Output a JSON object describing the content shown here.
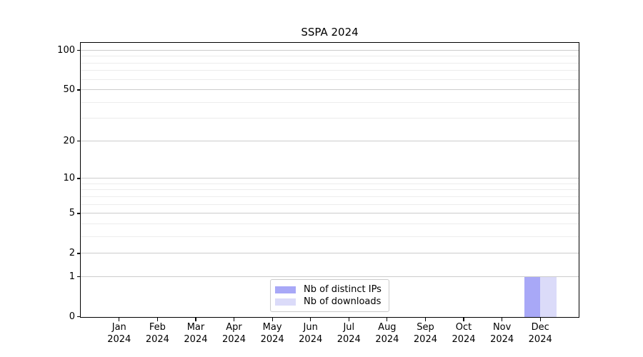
{
  "chart_data": {
    "type": "bar",
    "title": "SSPA 2024",
    "categories": [
      "Jan 2024",
      "Feb 2024",
      "Mar 2024",
      "Apr 2024",
      "May 2024",
      "Jun 2024",
      "Jul 2024",
      "Aug 2024",
      "Sep 2024",
      "Oct 2024",
      "Nov 2024",
      "Dec 2024"
    ],
    "series": [
      {
        "name": "Nb of distinct IPs",
        "color": "#a8a8f7",
        "values": [
          0,
          0,
          0,
          0,
          0,
          0,
          0,
          0,
          0,
          0,
          0,
          1
        ]
      },
      {
        "name": "Nb of downloads",
        "color": "#dbdbf9",
        "values": [
          0,
          0,
          0,
          0,
          0,
          0,
          0,
          0,
          0,
          0,
          0,
          1
        ]
      }
    ],
    "xlabel": "",
    "ylabel": "",
    "y_scale": "log10(1+y)",
    "y_ticks": [
      0,
      1,
      2,
      5,
      10,
      20,
      50,
      100
    ],
    "y_minor_ticks": [
      3,
      4,
      6,
      7,
      8,
      9,
      30,
      40,
      60,
      70,
      80,
      90
    ],
    "ylim": [
      0,
      114
    ],
    "grid": true,
    "legend_position": "lower center"
  }
}
